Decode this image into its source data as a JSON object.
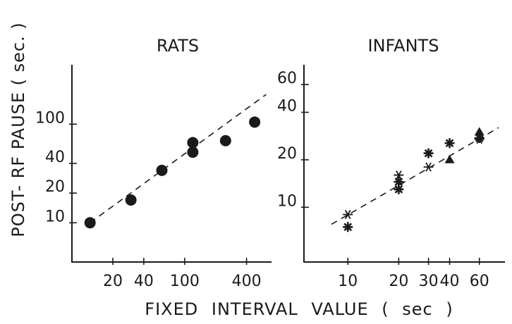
{
  "ylabel": "POST- RF PAUSE ( sec. )",
  "xlabel": "FIXED INTERVAL VALUE ( sec )",
  "chart_data": [
    {
      "type": "scatter",
      "title": "RATS",
      "xscale": "log",
      "yscale": "log",
      "xlim": [
        8,
        700
      ],
      "ylim": [
        4,
        400
      ],
      "xticks": [
        20,
        40,
        100,
        400
      ],
      "xtick_labels": [
        "20",
        "40",
        "100",
        "400"
      ],
      "yticks": [
        10,
        20,
        40,
        100
      ],
      "ytick_labels": [
        "10",
        "20",
        "40",
        "100"
      ],
      "series": [
        {
          "marker": "circle",
          "x": [
            12,
            30,
            60,
            120,
            120,
            250,
            480
          ],
          "y": [
            10,
            17,
            34,
            52,
            65,
            68,
            105
          ]
        }
      ],
      "fit_line": {
        "x": [
          12,
          620
        ],
        "y": [
          10,
          200
        ]
      }
    },
    {
      "type": "scatter",
      "title": "INFANTS",
      "xscale": "log",
      "yscale": "log",
      "xlim": [
        5.5,
        85
      ],
      "ylim": [
        4.5,
        80
      ],
      "xticks": [
        10,
        20,
        30,
        40,
        60
      ],
      "xtick_labels": [
        "10",
        "20",
        "30",
        "40",
        "60"
      ],
      "yticks": [
        10,
        20,
        40,
        60
      ],
      "ytick_labels": [
        "10",
        "20",
        "40",
        "60"
      ],
      "series": [
        {
          "marker": "asterisk",
          "x": [
            10,
            20,
            30,
            60
          ],
          "y": [
            9,
            16,
            18,
            27
          ]
        },
        {
          "marker": "star",
          "x": [
            10,
            20,
            20,
            30,
            40,
            60
          ],
          "y": [
            7.5,
            13,
            14.5,
            22,
            25.5,
            27.5
          ]
        },
        {
          "marker": "triangle",
          "x": [
            40,
            60
          ],
          "y": [
            20,
            30
          ]
        }
      ],
      "fit_line": {
        "x": [
          8,
          78
        ],
        "y": [
          7.8,
          32
        ]
      }
    }
  ]
}
